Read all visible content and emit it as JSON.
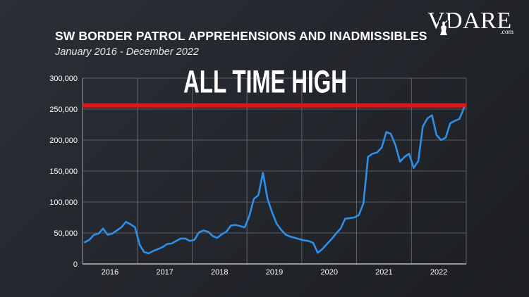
{
  "header": {
    "title": "SW BORDER PATROL APPREHENSIONS AND INADMISSIBLES",
    "subtitle": "January 2016 - December 2022"
  },
  "logo": {
    "text": "VDARE",
    "suffix": ".com"
  },
  "colors": {
    "line": "#2d8fe6",
    "threshold": "#e01515",
    "grid": "#6c7078",
    "text": "#ffffff"
  },
  "chart_data": {
    "type": "line",
    "title": "SW BORDER PATROL APPREHENSIONS AND INADMISSIBLES",
    "subtitle": "January 2016 - December 2022",
    "xlabel": "",
    "ylabel": "",
    "ylim": [
      0,
      300000
    ],
    "yticks": [
      0,
      50000,
      100000,
      150000,
      200000,
      250000,
      300000
    ],
    "ytick_labels": [
      "0",
      "50,000",
      "100,000",
      "150,000",
      "200,000",
      "250,000",
      "300,000"
    ],
    "years": [
      "2016",
      "2017",
      "2018",
      "2019",
      "2020",
      "2021",
      "2022"
    ],
    "grid": true,
    "annotation": {
      "text": "ALL TIME HIGH",
      "reference_value": 256000
    },
    "series": [
      {
        "values": [
          35000,
          39000,
          47000,
          49000,
          57000,
          47000,
          49000,
          54000,
          59000,
          68000,
          64000,
          59000,
          31000,
          19000,
          17000,
          21000,
          24000,
          27000,
          32000,
          33000,
          37000,
          41000,
          41000,
          37000,
          39000,
          51000,
          54000,
          52000,
          45000,
          42000,
          48000,
          52000,
          62000,
          63000,
          61000,
          59000,
          77000,
          105000,
          111000,
          147000,
          105000,
          83000,
          65000,
          55000,
          47000,
          44000,
          42000,
          40000,
          38000,
          37000,
          34000,
          18000,
          24000,
          32000,
          40000,
          49000,
          57000,
          73000,
          74000,
          75000,
          79000,
          98000,
          173000,
          178000,
          180000,
          188000,
          213000,
          210000,
          192000,
          165000,
          173000,
          178000,
          155000,
          166000,
          222000,
          235000,
          240000,
          208000,
          200000,
          204000,
          227000,
          231000,
          234000,
          252000
        ]
      }
    ]
  }
}
